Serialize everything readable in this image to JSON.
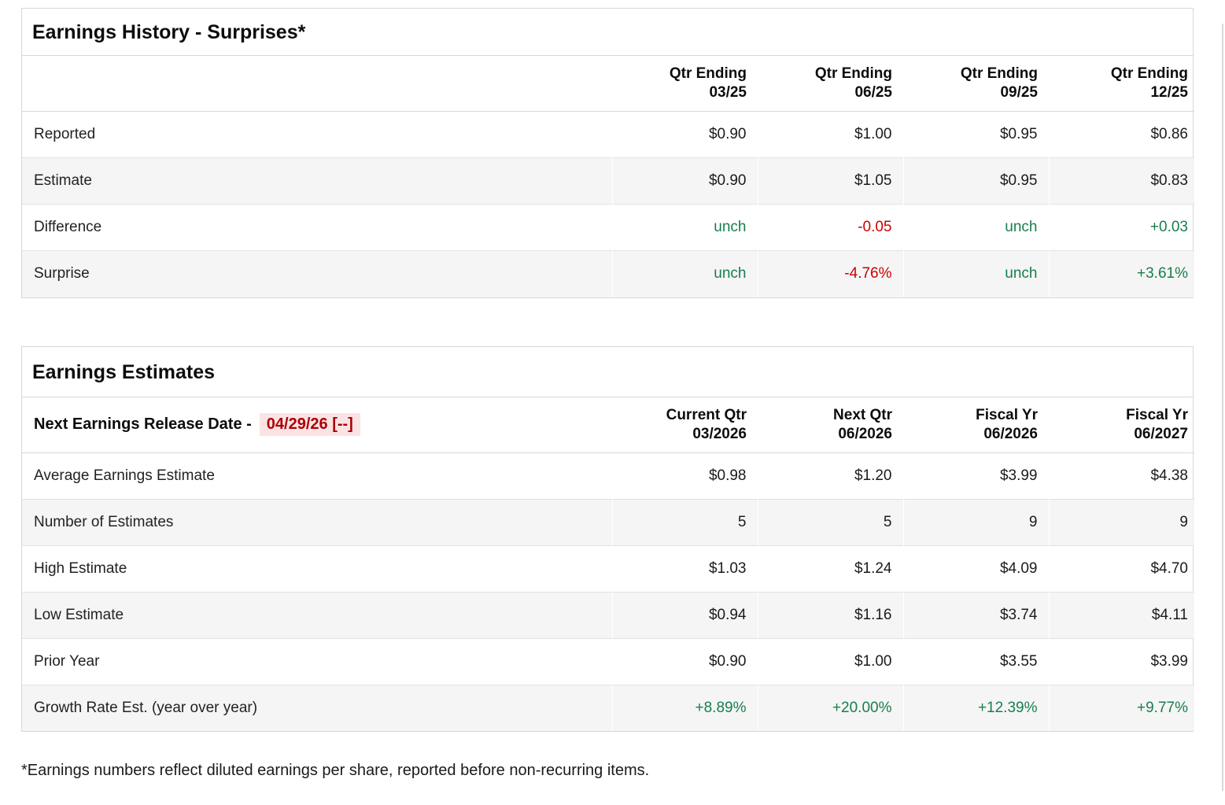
{
  "colors": {
    "positive": "#177e4e",
    "negative": "#cc0000",
    "date-text": "#ab0007",
    "date-bg": "#fce3e3",
    "stripe": "#f5f5f5",
    "border": "#d8d8d8",
    "row-line": "#e2e2e2"
  },
  "earnings_history": {
    "title": "Earnings History - Surprises*",
    "columns": [
      {
        "line1": "Qtr Ending",
        "line2": "03/25"
      },
      {
        "line1": "Qtr Ending",
        "line2": "06/25"
      },
      {
        "line1": "Qtr Ending",
        "line2": "09/25"
      },
      {
        "line1": "Qtr Ending",
        "line2": "12/25"
      }
    ],
    "rows": [
      {
        "label": "Reported",
        "values": [
          "$0.90",
          "$1.00",
          "$0.95",
          "$0.86"
        ]
      },
      {
        "label": "Estimate",
        "values": [
          "$0.90",
          "$1.05",
          "$0.95",
          "$0.83"
        ]
      },
      {
        "label": "Difference",
        "values": [
          "unch",
          "-0.05",
          "unch",
          "+0.03"
        ]
      },
      {
        "label": "Surprise",
        "values": [
          "unch",
          "-4.76%",
          "unch",
          "+3.61%"
        ]
      }
    ]
  },
  "earnings_estimates": {
    "title": "Earnings Estimates",
    "release_date_label": "Next Earnings Release Date -",
    "release_date_value": "04/29/26 [--]",
    "columns": [
      {
        "line1": "Current Qtr",
        "line2": "03/2026"
      },
      {
        "line1": "Next Qtr",
        "line2": "06/2026"
      },
      {
        "line1": "Fiscal Yr",
        "line2": "06/2026"
      },
      {
        "line1": "Fiscal Yr",
        "line2": "06/2027"
      }
    ],
    "rows": [
      {
        "label": "Average Earnings Estimate",
        "values": [
          "$0.98",
          "$1.20",
          "$3.99",
          "$4.38"
        ]
      },
      {
        "label": "Number of Estimates",
        "values": [
          "5",
          "5",
          "9",
          "9"
        ]
      },
      {
        "label": "High Estimate",
        "values": [
          "$1.03",
          "$1.24",
          "$4.09",
          "$4.70"
        ]
      },
      {
        "label": "Low Estimate",
        "values": [
          "$0.94",
          "$1.16",
          "$3.74",
          "$4.11"
        ]
      },
      {
        "label": "Prior Year",
        "values": [
          "$0.90",
          "$1.00",
          "$3.55",
          "$3.99"
        ]
      },
      {
        "label": "Growth Rate Est. (year over year)",
        "values": [
          "+8.89%",
          "+20.00%",
          "+12.39%",
          "+9.77%"
        ]
      }
    ]
  },
  "footnote": "*Earnings numbers reflect diluted earnings per share, reported before non-recurring items."
}
